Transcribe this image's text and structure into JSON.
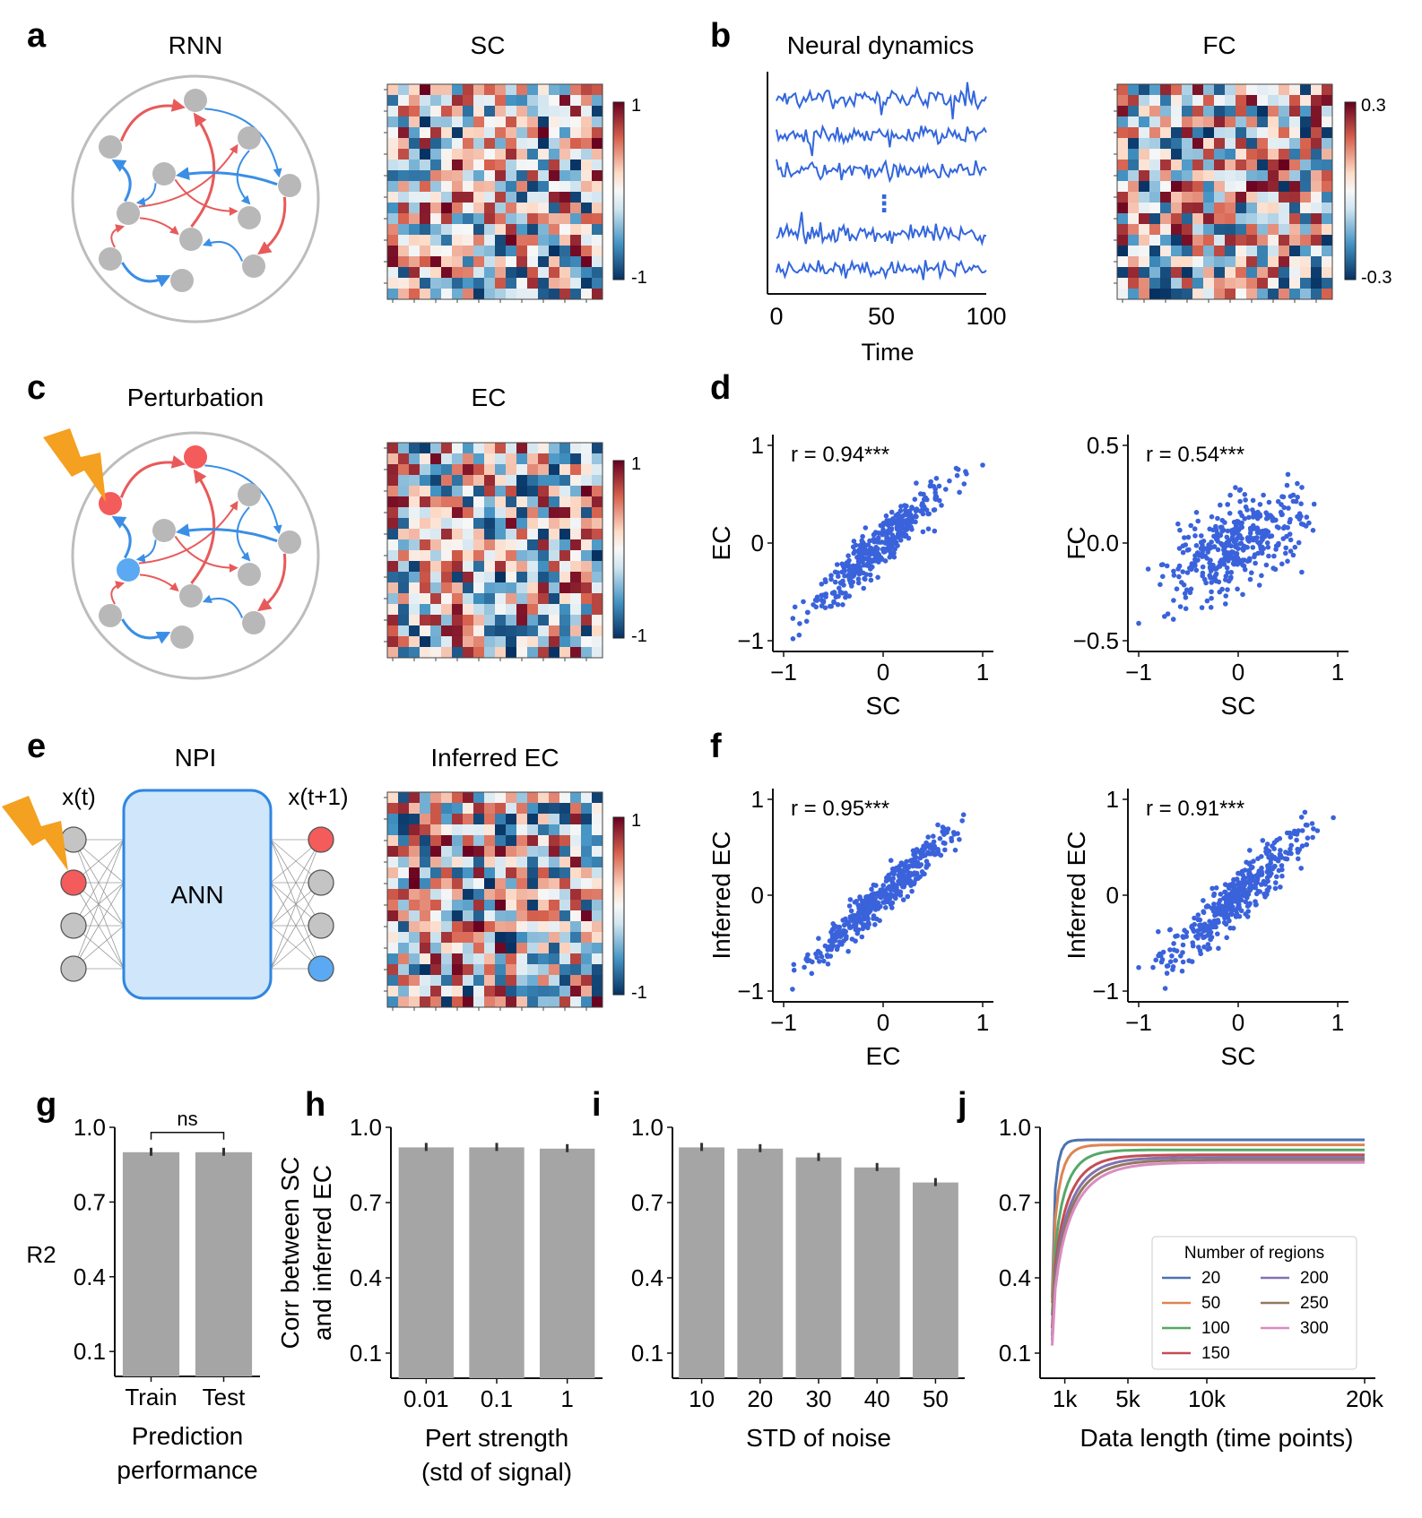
{
  "panel_letters": {
    "a": "a",
    "b": "b",
    "c": "c",
    "d": "d",
    "e": "e",
    "f": "f",
    "g": "g",
    "h": "h",
    "i": "i",
    "j": "j"
  },
  "titles": {
    "rnn": "RNN",
    "sc": "SC",
    "neural_dynamics": "Neural dynamics",
    "fc": "FC",
    "perturbation": "Perturbation",
    "ec": "EC",
    "npi": "NPI",
    "inferred_ec": "Inferred EC",
    "xt": "x(t)",
    "xt1": "x(t+1)",
    "ann": "ANN"
  },
  "colorbars": {
    "sc": {
      "max": "1",
      "min": "-1"
    },
    "fc": {
      "max": "0.3",
      "min": "-0.3"
    },
    "ec": {
      "max": "1",
      "min": "-1"
    },
    "inferred": {
      "max": "1",
      "min": "-1"
    }
  },
  "dynamics": {
    "ellipsis": "⋮",
    "xticks": [
      "0",
      "50",
      "100"
    ],
    "xlabel": "Time"
  },
  "colors": {
    "blue": "#3366dd",
    "red": "#e85a5a",
    "grey": "#a5a5a5",
    "node": "#bdbdbd",
    "pert": "#f4a020"
  },
  "scatter": [
    {
      "id": "d1",
      "r": "r = 0.94***",
      "r_value": 0.94,
      "xlabel": "SC",
      "ylabel": "EC",
      "xticks": [
        "−1",
        "0",
        "1"
      ],
      "yticks": [
        "1",
        "0",
        "−1"
      ],
      "ylim": [
        -1,
        1
      ]
    },
    {
      "id": "d2",
      "r": "r = 0.54***",
      "r_value": 0.54,
      "xlabel": "SC",
      "ylabel": "FC",
      "xticks": [
        "−1",
        "0",
        "1"
      ],
      "yticks": [
        "0.5",
        "0.0",
        "−0.5"
      ],
      "ylim": [
        -0.5,
        0.5
      ]
    },
    {
      "id": "f1",
      "r": "r = 0.95***",
      "r_value": 0.95,
      "xlabel": "EC",
      "ylabel": "Inferred EC",
      "xticks": [
        "−1",
        "0",
        "1"
      ],
      "yticks": [
        "1",
        "0",
        "−1"
      ],
      "ylim": [
        -1,
        1
      ]
    },
    {
      "id": "f2",
      "r": "r = 0.91***",
      "r_value": 0.91,
      "xlabel": "SC",
      "ylabel": "Inferred EC",
      "xticks": [
        "−1",
        "0",
        "1"
      ],
      "yticks": [
        "1",
        "0",
        "−1"
      ],
      "ylim": [
        -1,
        1
      ]
    }
  ],
  "chart_data": [
    {
      "id": "g",
      "type": "bar",
      "categories": [
        "Train",
        "Test"
      ],
      "values": [
        0.9,
        0.9
      ],
      "ylim": [
        0,
        1
      ],
      "yticks": [
        "1.0",
        "0.7",
        "0.4",
        "0.1"
      ],
      "ylabel": "R2",
      "xlabel_lines": [
        "Prediction",
        "performance"
      ],
      "annotation": "ns"
    },
    {
      "id": "h",
      "type": "bar",
      "categories": [
        "0.01",
        "0.1",
        "1"
      ],
      "values": [
        0.92,
        0.92,
        0.915
      ],
      "ylim": [
        0,
        1
      ],
      "yticks": [
        "1.0",
        "0.7",
        "0.4",
        "0.1"
      ],
      "ylabel_lines": [
        "Corr between SC",
        "and inferred EC"
      ],
      "xlabel_lines": [
        "Pert strength",
        "(std of signal)"
      ]
    },
    {
      "id": "i",
      "type": "bar",
      "categories": [
        "10",
        "20",
        "30",
        "40",
        "50"
      ],
      "values": [
        0.92,
        0.915,
        0.88,
        0.84,
        0.78
      ],
      "ylim": [
        0,
        1
      ],
      "yticks": [
        "1.0",
        "0.7",
        "0.4",
        "0.1"
      ],
      "xlabel_lines": [
        "STD of noise"
      ]
    },
    {
      "id": "j",
      "type": "line",
      "x_ticks": [
        "1k",
        "5k",
        "10k",
        "20k"
      ],
      "xlim": [
        0,
        20000
      ],
      "ylim": [
        0,
        1
      ],
      "yticks": [
        "1.0",
        "0.7",
        "0.4",
        "0.1"
      ],
      "xlabel": "Data length (time points)",
      "legend_title": "Number of regions",
      "series": [
        {
          "name": "20",
          "color": "#4c72b0",
          "start": 0.32,
          "end": 0.95,
          "k": 800
        },
        {
          "name": "50",
          "color": "#dd8452",
          "start": 0.3,
          "end": 0.93,
          "k": 1500
        },
        {
          "name": "100",
          "color": "#55a868",
          "start": 0.25,
          "end": 0.91,
          "k": 2600
        },
        {
          "name": "150",
          "color": "#c44e52",
          "start": 0.2,
          "end": 0.89,
          "k": 3400
        },
        {
          "name": "200",
          "color": "#8172b3",
          "start": 0.17,
          "end": 0.88,
          "k": 3900
        },
        {
          "name": "250",
          "color": "#937860",
          "start": 0.15,
          "end": 0.87,
          "k": 4200
        },
        {
          "name": "300",
          "color": "#da8bc3",
          "start": 0.13,
          "end": 0.86,
          "k": 4500
        }
      ]
    }
  ]
}
